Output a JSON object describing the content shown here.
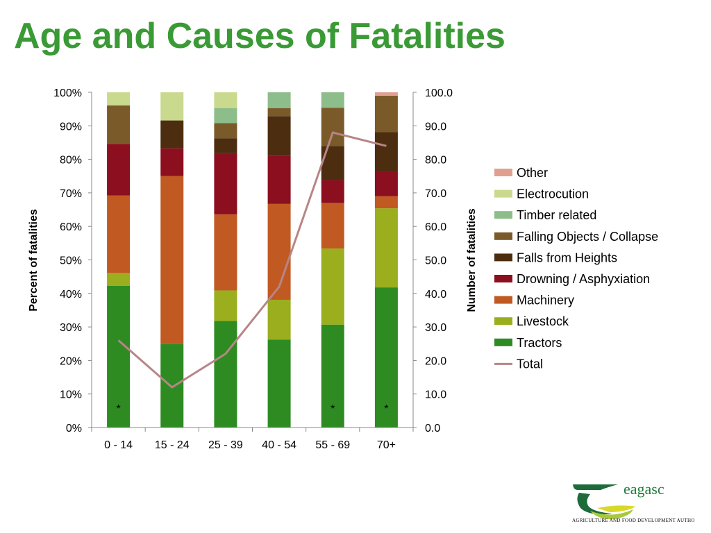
{
  "slide": {
    "title": "Age and Causes of Fatalities"
  },
  "logo": {
    "name": "eagasc",
    "tagline": "Agriculture and Food Development Authority"
  },
  "chart_data": {
    "type": "bar",
    "subtype": "stacked-100-percent-with-line",
    "categories": [
      "0 - 14",
      "15 - 24",
      "25 - 39",
      "40 - 54",
      "55 - 69",
      "70+"
    ],
    "y_left": {
      "label": "Percent of fatalities",
      "ticks": [
        "0%",
        "10%",
        "20%",
        "30%",
        "40%",
        "50%",
        "60%",
        "70%",
        "80%",
        "90%",
        "100%"
      ],
      "range": [
        0,
        100
      ]
    },
    "y_right": {
      "label": "Number of fatalities",
      "ticks": [
        "0.0",
        "10.0",
        "20.0",
        "30.0",
        "40.0",
        "50.0",
        "60.0",
        "70.0",
        "80.0",
        "90.0",
        "100.0"
      ],
      "range": [
        0,
        100
      ]
    },
    "series": [
      {
        "name": "Tractors",
        "color": "#2e8b22",
        "values": [
          42.3,
          25.0,
          31.8,
          26.2,
          30.7,
          41.8
        ]
      },
      {
        "name": "Livestock",
        "color": "#9aae1e",
        "values": [
          3.8,
          0.0,
          9.1,
          11.9,
          22.7,
          23.6
        ]
      },
      {
        "name": "Machinery",
        "color": "#c05a22",
        "values": [
          23.1,
          50.0,
          22.7,
          28.6,
          13.6,
          3.6
        ]
      },
      {
        "name": "Drowning / Asphyxiation",
        "color": "#8b0f1e",
        "values": [
          15.4,
          8.3,
          18.2,
          14.3,
          6.8,
          7.3
        ]
      },
      {
        "name": "Falls from Heights",
        "color": "#4d2d10",
        "values": [
          0.0,
          8.3,
          4.5,
          11.9,
          10.2,
          11.8
        ]
      },
      {
        "name": "Falling Objects / Collapse",
        "color": "#7b5a2a",
        "values": [
          11.5,
          0.0,
          4.5,
          2.4,
          11.4,
          10.9
        ]
      },
      {
        "name": "Timber related",
        "color": "#8cbd8a",
        "values": [
          0.0,
          0.0,
          4.5,
          4.7,
          4.6,
          0.0
        ]
      },
      {
        "name": "Electrocution",
        "color": "#c9d98e",
        "values": [
          3.9,
          8.4,
          4.7,
          0.0,
          0.0,
          0.0
        ]
      },
      {
        "name": "Other",
        "color": "#e0a090",
        "values": [
          0.0,
          0.0,
          0.0,
          0.0,
          0.0,
          1.0
        ]
      }
    ],
    "line": {
      "name": "Total",
      "color": "#b78587",
      "axis": "right",
      "values": [
        26,
        12,
        22,
        42,
        88,
        84
      ]
    },
    "legend_order": [
      "Other",
      "Electrocution",
      "Timber related",
      "Falling Objects / Collapse",
      "Falls from Heights",
      "Drowning / Asphyxiation",
      "Machinery",
      "Livestock",
      "Tractors",
      "Total"
    ],
    "legend_position": "right",
    "annotations": {
      "marker": "*",
      "categories": [
        "0 - 14",
        "55 - 69",
        "70+"
      ]
    },
    "grid": false
  }
}
